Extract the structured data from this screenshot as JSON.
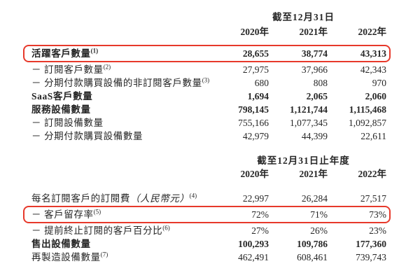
{
  "page": {
    "background": "#ffffff",
    "text_color": "#262626",
    "highlight_color": "#e7392b"
  },
  "tables": [
    {
      "period_header": "截至12月31日",
      "years": [
        "2020年",
        "2021年",
        "2022年"
      ],
      "rows": [
        {
          "label": "活躍客戶數量",
          "sup": "(1)",
          "bold": true,
          "boxed": true,
          "values": [
            "28,655",
            "38,774",
            "43,313"
          ]
        },
        {
          "label": "－ 訂閱客戶數量",
          "sup": "(2)",
          "bold": false,
          "boxed": false,
          "values": [
            "27,975",
            "37,966",
            "42,343"
          ]
        },
        {
          "label": "－ 分期付款購買設備的非訂閱客戶數量",
          "sup": "(3)",
          "bold": false,
          "boxed": false,
          "values": [
            "680",
            "808",
            "970"
          ]
        },
        {
          "label": "SaaS客戶數量",
          "bold": true,
          "boxed": false,
          "values": [
            "1,694",
            "2,065",
            "2,060"
          ]
        },
        {
          "label": "服務設備數量",
          "bold": true,
          "boxed": false,
          "values": [
            "798,145",
            "1,121,744",
            "1,115,468"
          ]
        },
        {
          "label": "－ 訂閱設備數量",
          "bold": false,
          "boxed": false,
          "values": [
            "755,166",
            "1,077,345",
            "1,092,857"
          ]
        },
        {
          "label": "－ 分期付款購買設備數量",
          "bold": false,
          "boxed": false,
          "values": [
            "42,979",
            "44,399",
            "22,611"
          ]
        }
      ]
    },
    {
      "period_header": "截至12月31日止年度",
      "years": [
        "2020年",
        "2021年",
        "2022年"
      ],
      "rows": [
        {
          "label": "每名訂閱客戶的訂閱費",
          "label_italic": "（人民幣元）",
          "sup": "(4)",
          "bold": false,
          "boxed": false,
          "values": [
            "22,997",
            "26,284",
            "27,517"
          ]
        },
        {
          "label": "－ 客戶留存率",
          "sup": "(5)",
          "bold": false,
          "boxed": true,
          "values": [
            "72%",
            "71%",
            "73%"
          ]
        },
        {
          "label": "－ 提前終止訂閱的客戶百分比",
          "sup": "(6)",
          "bold": false,
          "boxed": false,
          "values": [
            "27%",
            "26%",
            "23%"
          ]
        },
        {
          "label": "售出設備數量",
          "bold": true,
          "boxed": false,
          "values": [
            "100,293",
            "109,786",
            "177,360"
          ]
        },
        {
          "label": "再製造設備數量",
          "sup": "(7)",
          "bold": false,
          "boxed": false,
          "values": [
            "462,491",
            "608,461",
            "739,743"
          ]
        }
      ]
    }
  ]
}
